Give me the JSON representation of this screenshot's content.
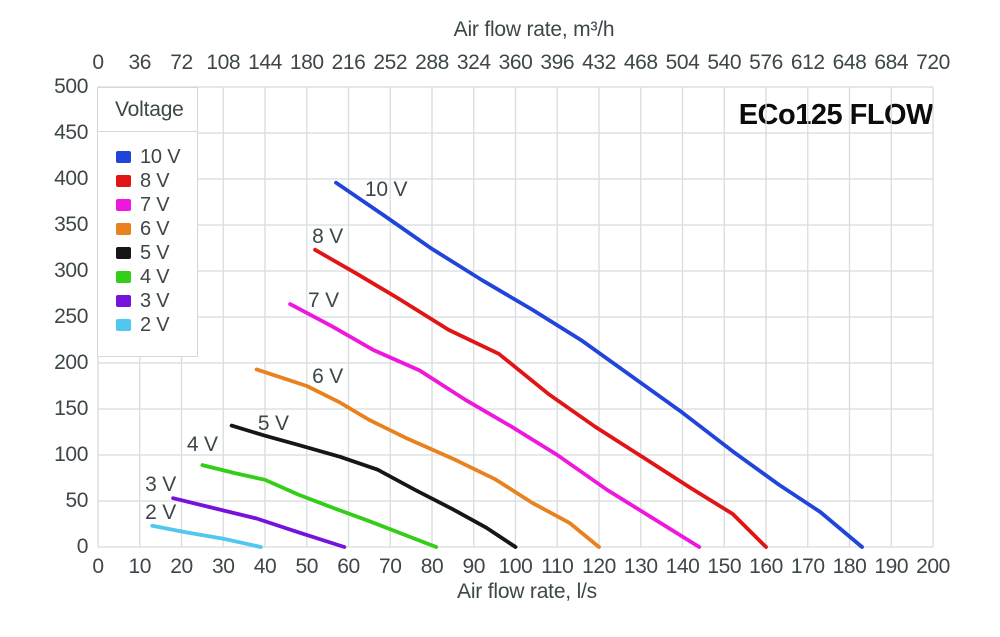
{
  "title": "ECo125 FLOW",
  "colors": {
    "background": "#ffffff",
    "grid": "#d8dcdc",
    "text": "#3d4749",
    "title_text": "#0c0c0c"
  },
  "chart_data": {
    "type": "line",
    "title": "ECo125 FLOW",
    "legend": {
      "title": "Voltage",
      "position": "top-left"
    },
    "grid": true,
    "x_top": {
      "label": "Air flow rate, m³/h",
      "range": [
        0,
        720
      ],
      "ticks": [
        0,
        36,
        72,
        108,
        144,
        180,
        216,
        252,
        288,
        324,
        360,
        396,
        432,
        468,
        504,
        540,
        576,
        612,
        648,
        684,
        720
      ]
    },
    "x_bottom": {
      "label": "Air flow rate, l/s",
      "range": [
        0,
        200
      ],
      "ticks": [
        0,
        10,
        20,
        30,
        40,
        50,
        60,
        70,
        80,
        90,
        100,
        110,
        120,
        130,
        140,
        150,
        160,
        170,
        180,
        190,
        200
      ]
    },
    "y_left": {
      "label": "",
      "range": [
        0,
        500
      ],
      "ticks": [
        0,
        50,
        100,
        150,
        200,
        250,
        300,
        350,
        400,
        450,
        500
      ]
    },
    "series": [
      {
        "name": "10 V",
        "color": "#2144da",
        "label_at": [
          69,
          388
        ],
        "points": [
          [
            57,
            396
          ],
          [
            68,
            362
          ],
          [
            80,
            324
          ],
          [
            92,
            290
          ],
          [
            104,
            258
          ],
          [
            116,
            224
          ],
          [
            128,
            185
          ],
          [
            140,
            146
          ],
          [
            152,
            104
          ],
          [
            163,
            68
          ],
          [
            173,
            38
          ],
          [
            183,
            0
          ]
        ]
      },
      {
        "name": "8 V",
        "color": "#e11515",
        "label_at": [
          55,
          337
        ],
        "points": [
          [
            52,
            323
          ],
          [
            62,
            297
          ],
          [
            72,
            270
          ],
          [
            84,
            236
          ],
          [
            96,
            210
          ],
          [
            108,
            166
          ],
          [
            119,
            131
          ],
          [
            130,
            99
          ],
          [
            142,
            64
          ],
          [
            152,
            36
          ],
          [
            160,
            0
          ]
        ]
      },
      {
        "name": "7 V",
        "color": "#ee18dd",
        "label_at": [
          54,
          267
        ],
        "points": [
          [
            46,
            264
          ],
          [
            56,
            240
          ],
          [
            66,
            214
          ],
          [
            77,
            192
          ],
          [
            88,
            160
          ],
          [
            99,
            131
          ],
          [
            110,
            100
          ],
          [
            122,
            62
          ],
          [
            133,
            31
          ],
          [
            144,
            0
          ]
        ]
      },
      {
        "name": "6 V",
        "color": "#e8811e",
        "label_at": [
          55,
          185
        ],
        "points": [
          [
            38,
            193
          ],
          [
            44,
            184
          ],
          [
            50,
            175
          ],
          [
            58,
            157
          ],
          [
            65,
            138
          ],
          [
            74,
            118
          ],
          [
            85,
            96
          ],
          [
            95,
            74
          ],
          [
            104,
            48
          ],
          [
            113,
            26
          ],
          [
            120,
            0
          ]
        ]
      },
      {
        "name": "5 V",
        "color": "#161616",
        "label_at": [
          42,
          134
        ],
        "points": [
          [
            32,
            132
          ],
          [
            40,
            121
          ],
          [
            48,
            111
          ],
          [
            58,
            98
          ],
          [
            67,
            84
          ],
          [
            76,
            62
          ],
          [
            85,
            41
          ],
          [
            93,
            21
          ],
          [
            100,
            0
          ]
        ]
      },
      {
        "name": "4 V",
        "color": "#34cd17",
        "label_at": [
          25,
          111
        ],
        "points": [
          [
            25,
            89
          ],
          [
            33,
            80
          ],
          [
            40,
            73
          ],
          [
            48,
            57
          ],
          [
            56,
            43
          ],
          [
            65,
            28
          ],
          [
            73,
            14
          ],
          [
            81,
            0
          ]
        ]
      },
      {
        "name": "3 V",
        "color": "#7513dc",
        "label_at": [
          15,
          67
        ],
        "points": [
          [
            18,
            53
          ],
          [
            28,
            42
          ],
          [
            38,
            31
          ],
          [
            48,
            16
          ],
          [
            59,
            0
          ]
        ]
      },
      {
        "name": "2 V",
        "color": "#4fc7ee",
        "label_at": [
          15,
          37
        ],
        "points": [
          [
            13,
            23
          ],
          [
            21,
            16
          ],
          [
            30,
            9
          ],
          [
            39,
            0
          ]
        ]
      }
    ]
  }
}
